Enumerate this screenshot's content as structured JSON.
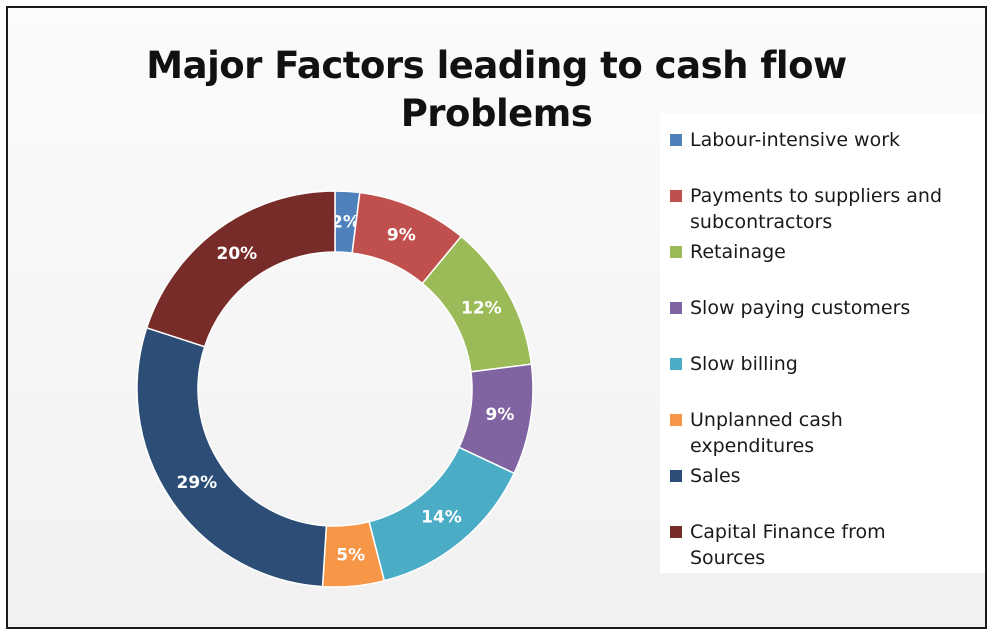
{
  "chart_data": {
    "type": "pie",
    "subtype": "donut",
    "title": "Major Factors leading to cash flow\nProblems",
    "legend_position": "right",
    "series": [
      {
        "name": "Labour-intensive work",
        "value": 2,
        "label": "2%",
        "color": "#4F81BD"
      },
      {
        "name": "Payments to suppliers and\nsubcontractors",
        "value": 9,
        "label": "9%",
        "color": "#C0504D"
      },
      {
        "name": "Retainage",
        "value": 12,
        "label": "12%",
        "color": "#9BBB59"
      },
      {
        "name": "Slow paying customers",
        "value": 9,
        "label": "9%",
        "color": "#8064A2"
      },
      {
        "name": "Slow billing",
        "value": 14,
        "label": "14%",
        "color": "#4BACC6"
      },
      {
        "name": "Unplanned cash\nexpenditures",
        "value": 5,
        "label": "5%",
        "color": "#F79646"
      },
      {
        "name": "Sales",
        "value": 29,
        "label": "29%",
        "color": "#2C4D75"
      },
      {
        "name": "Capital Finance from\nSources",
        "value": 20,
        "label": "20%",
        "color": "#772C2A"
      }
    ]
  }
}
